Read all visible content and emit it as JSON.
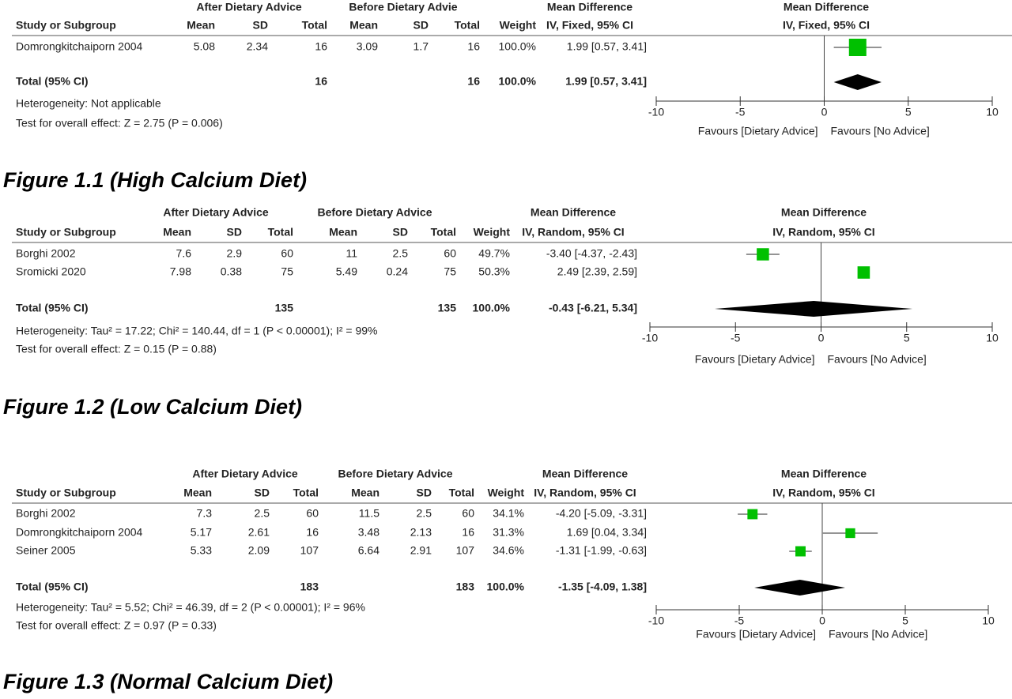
{
  "chart_data": [
    {
      "type": "forest",
      "caption": "Figure 1.1 (High Calcium Diet)",
      "group_headers": [
        "After Dietary Advice",
        "Before Dietary Advie",
        "Mean Difference",
        "Mean Difference"
      ],
      "columns": [
        "Study or Subgroup",
        "Mean",
        "SD",
        "Total",
        "Mean",
        "SD",
        "Total",
        "Weight",
        "IV, Fixed, 95% CI",
        "IV, Fixed, 95% CI"
      ],
      "studies": [
        {
          "name": "Domrongkitchaiporn 2004",
          "cells": [
            5.08,
            2.34,
            16,
            3.09,
            1.7,
            16
          ],
          "weight": 100,
          "weight_label": "100.0%",
          "md": 1.99,
          "ci": [
            0.57,
            3.41
          ],
          "md_label": "1.99 [0.57, 3.41]"
        }
      ],
      "total": {
        "name": "Total (95% CI)",
        "n1": 16,
        "n2": 16,
        "weight": 100,
        "weight_label": "100.0%",
        "md": 1.99,
        "ci": [
          0.57,
          3.41
        ],
        "md_label": "1.99 [0.57, 3.41]"
      },
      "heterogeneity": "Heterogeneity: Not applicable",
      "overall_effect": "Test for overall effect: Z = 2.75 (P = 0.006)",
      "xlim": [
        -10,
        10
      ],
      "xticks": [
        -10,
        -5,
        0,
        5,
        10
      ],
      "favours": [
        "Favours [Dietary Advice]",
        "Favours [No Advice]"
      ],
      "color": "#00c000"
    },
    {
      "type": "forest",
      "caption": "Figure 1.2 (Low Calcium Diet)",
      "group_headers": [
        "After Dietary Advice",
        "Before Dietary Advice",
        "Mean Difference",
        "Mean Difference"
      ],
      "columns": [
        "Study or Subgroup",
        "Mean",
        "SD",
        "Total",
        "Mean",
        "SD",
        "Total",
        "Weight",
        "IV, Random, 95% CI",
        "IV, Random, 95% CI"
      ],
      "studies": [
        {
          "name": "Borghi 2002",
          "cells": [
            7.6,
            2.9,
            60,
            11,
            2.5,
            60
          ],
          "weight": 49.7,
          "weight_label": "49.7%",
          "md": -3.4,
          "ci": [
            -4.37,
            -2.43
          ],
          "md_label": "-3.40 [-4.37, -2.43]"
        },
        {
          "name": "Sromicki 2020",
          "cells": [
            7.98,
            0.38,
            75,
            5.49,
            0.24,
            75
          ],
          "weight": 50.3,
          "weight_label": "50.3%",
          "md": 2.49,
          "ci": [
            2.39,
            2.59
          ],
          "md_label": "2.49 [2.39, 2.59]"
        }
      ],
      "total": {
        "name": "Total (95% CI)",
        "n1": 135,
        "n2": 135,
        "weight": 100,
        "weight_label": "100.0%",
        "md": -0.43,
        "ci": [
          -6.21,
          5.34
        ],
        "md_label": "-0.43 [-6.21, 5.34]"
      },
      "heterogeneity": "Heterogeneity: Tau² = 17.22; Chi² = 140.44, df = 1 (P < 0.00001); I² = 99%",
      "overall_effect": "Test for overall effect: Z = 0.15 (P = 0.88)",
      "xlim": [
        -10,
        10
      ],
      "xticks": [
        -10,
        -5,
        0,
        5,
        10
      ],
      "favours": [
        "Favours [Dietary Advice]",
        "Favours [No Advice]"
      ],
      "color": "#00c000"
    },
    {
      "type": "forest",
      "caption": "Figure 1.3 (Normal Calcium Diet)",
      "group_headers": [
        "After Dietary Advice",
        "Before Dietary Advice",
        "Mean Difference",
        "Mean Difference"
      ],
      "columns": [
        "Study or Subgroup",
        "Mean",
        "SD",
        "Total",
        "Mean",
        "SD",
        "Total",
        "Weight",
        "IV, Random, 95% CI",
        "IV, Random, 95% CI"
      ],
      "studies": [
        {
          "name": "Borghi 2002",
          "cells": [
            7.3,
            2.5,
            60,
            11.5,
            2.5,
            60
          ],
          "weight": 34.1,
          "weight_label": "34.1%",
          "md": -4.2,
          "ci": [
            -5.09,
            -3.31
          ],
          "md_label": "-4.20 [-5.09, -3.31]"
        },
        {
          "name": "Domrongkitchaiporn 2004",
          "cells": [
            5.17,
            2.61,
            16,
            3.48,
            2.13,
            16
          ],
          "weight": 31.3,
          "weight_label": "31.3%",
          "md": 1.69,
          "ci": [
            0.04,
            3.34
          ],
          "md_label": "1.69 [0.04, 3.34]"
        },
        {
          "name": "Seiner 2005",
          "cells": [
            5.33,
            2.09,
            107,
            6.64,
            2.91,
            107
          ],
          "weight": 34.6,
          "weight_label": "34.6%",
          "md": -1.31,
          "ci": [
            -1.99,
            -0.63
          ],
          "md_label": "-1.31 [-1.99, -0.63]"
        }
      ],
      "total": {
        "name": "Total (95% CI)",
        "n1": 183,
        "n2": 183,
        "weight": 100,
        "weight_label": "100.0%",
        "md": -1.35,
        "ci": [
          -4.09,
          1.38
        ],
        "md_label": "-1.35 [-4.09, 1.38]"
      },
      "heterogeneity": "Heterogeneity: Tau² = 5.52; Chi² = 46.39, df = 2 (P < 0.00001); I² = 96%",
      "overall_effect": "Test for overall effect: Z = 0.97 (P = 0.33)",
      "xlim": [
        -10,
        10
      ],
      "xticks": [
        -10,
        -5,
        0,
        5,
        10
      ],
      "favours": [
        "Favours [Dietary Advice]",
        "Favours [No Advice]"
      ],
      "color": "#00c000"
    }
  ]
}
